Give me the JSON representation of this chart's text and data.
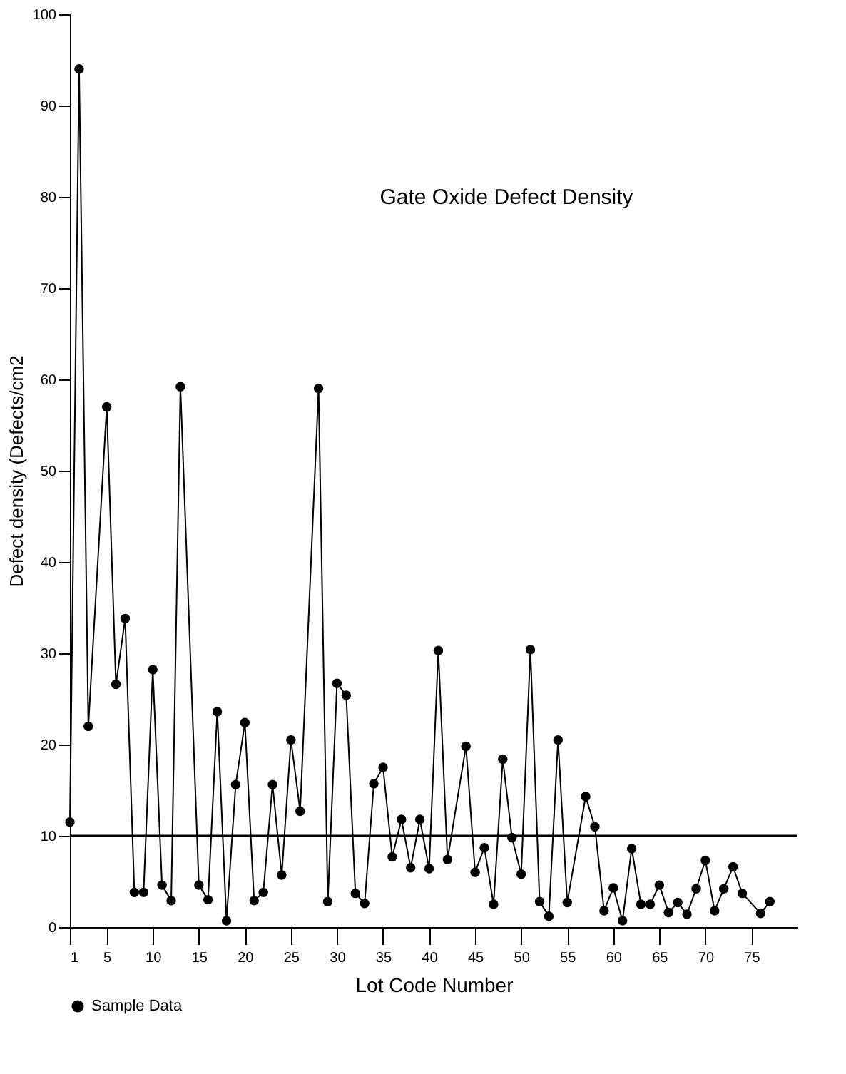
{
  "chart_data": {
    "type": "line",
    "title": "Gate Oxide Defect Density",
    "xlabel": "Lot Code Number",
    "ylabel": "Defect density (Defects/cm2",
    "xlim": [
      1,
      80
    ],
    "xticks": [
      1,
      5,
      10,
      15,
      20,
      25,
      30,
      35,
      40,
      45,
      50,
      55,
      60,
      65,
      70,
      75
    ],
    "ylim": [
      0,
      100
    ],
    "yticks": [
      0,
      10,
      20,
      30,
      40,
      50,
      60,
      70,
      80,
      90,
      100
    ],
    "grid": false,
    "legend": "bottom left",
    "marker": "circle",
    "line_style": "solid",
    "series": [
      {
        "name": "Sample Data",
        "color": "#000000",
        "x": [
          1,
          2,
          3,
          5,
          6,
          7,
          8,
          9,
          10,
          11,
          12,
          13,
          15,
          16,
          17,
          18,
          19,
          20,
          21,
          22,
          23,
          24,
          25,
          26,
          28,
          29,
          30,
          31,
          32,
          33,
          34,
          35,
          36,
          37,
          38,
          39,
          40,
          41,
          42,
          44,
          45,
          46,
          47,
          48,
          49,
          50,
          51,
          52,
          53,
          54,
          55,
          57,
          58,
          59,
          60,
          61,
          62,
          63,
          64,
          65,
          66,
          67,
          68,
          69,
          70,
          71,
          72,
          73,
          74,
          76,
          77
        ],
        "values": [
          11.5,
          94,
          22,
          57,
          26.6,
          33.8,
          3.8,
          3.8,
          28.2,
          4.6,
          2.9,
          59.2,
          4.6,
          3.0,
          23.6,
          0.7,
          15.6,
          22.4,
          2.9,
          3.8,
          15.6,
          5.7,
          20.5,
          12.7,
          59,
          2.8,
          26.7,
          25.4,
          3.7,
          2.6,
          15.7,
          17.5,
          7.7,
          11.8,
          6.5,
          11.8,
          6.4,
          30.3,
          7.4,
          19.8,
          6.0,
          8.7,
          2.5,
          18.4,
          9.8,
          5.8,
          30.4,
          2.8,
          1.2,
          20.5,
          2.7,
          14.3,
          11.0,
          1.8,
          4.3,
          0.7,
          8.6,
          2.5,
          2.5,
          4.6,
          1.6,
          2.7,
          1.4,
          4.2,
          7.3,
          1.8,
          4.2,
          6.6,
          3.7,
          1.5,
          2.8
        ]
      }
    ],
    "ref_lines": [
      {
        "axis": "y",
        "value": 10,
        "color": "#000000",
        "line_style": "solid"
      }
    ]
  }
}
